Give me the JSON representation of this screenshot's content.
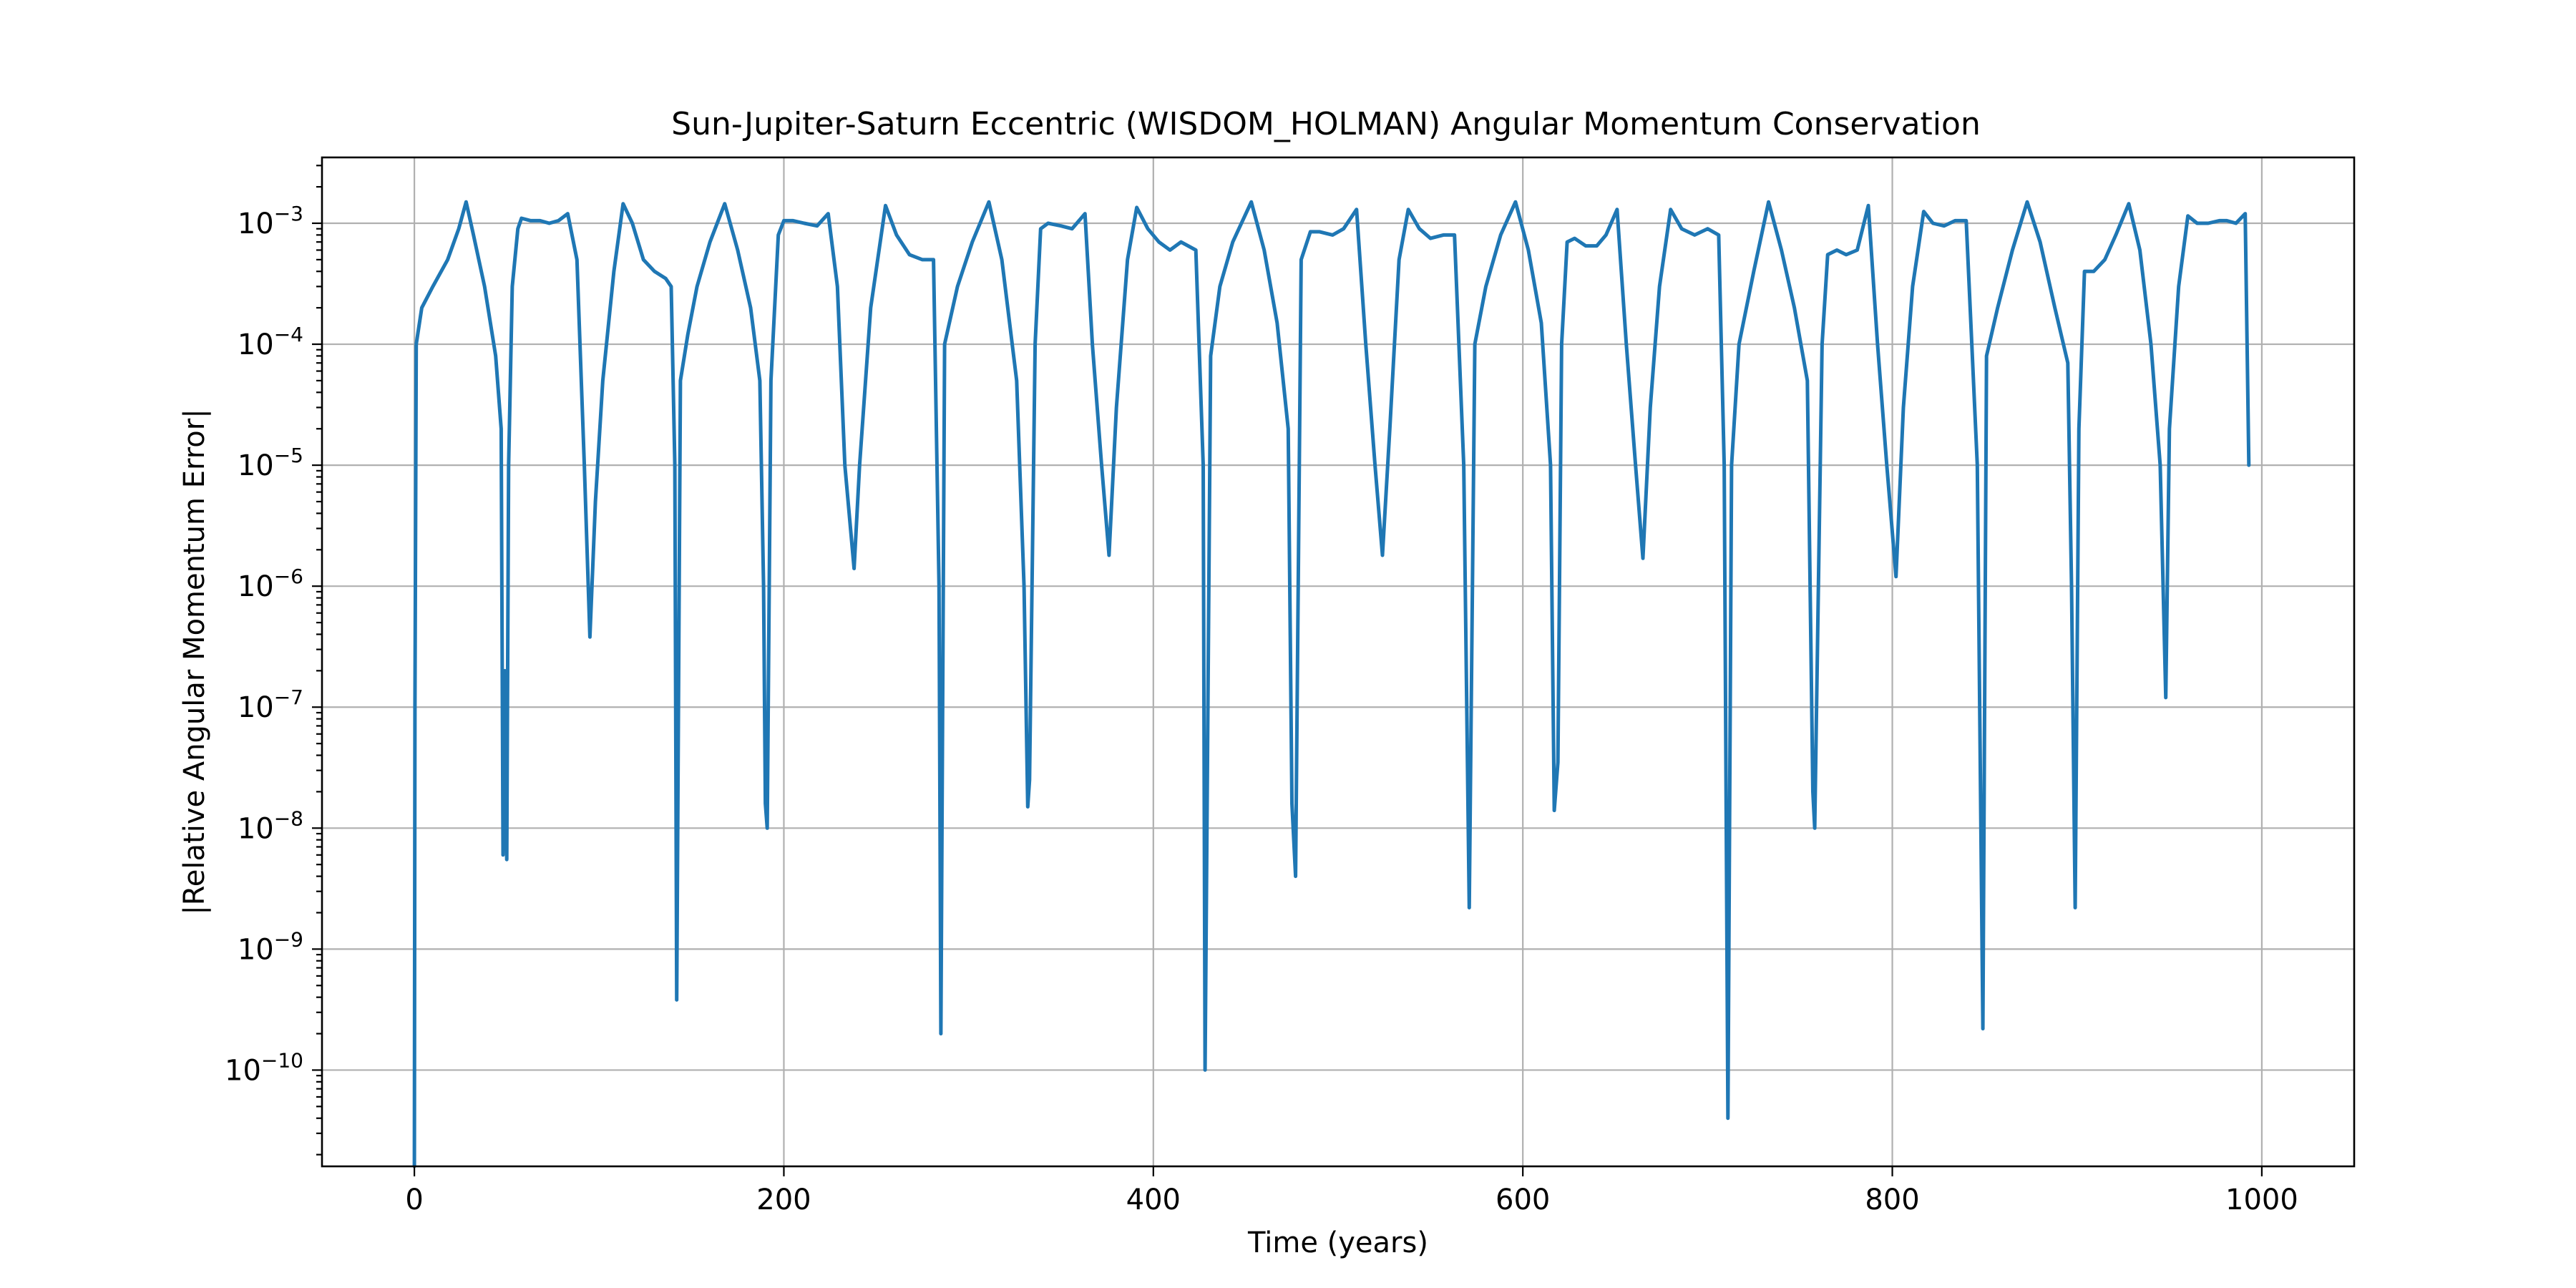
{
  "chart_data": {
    "type": "line",
    "title": "Sun-Jupiter-Saturn Eccentric (WISDOM_HOLMAN) Angular Momentum Conservation",
    "xlabel": "Time (years)",
    "ylabel": "|Relative Angular Momentum Error|",
    "xlim": [
      -50,
      1050
    ],
    "ylim": [
      1.6e-11,
      0.0035
    ],
    "yscale": "log",
    "grid": true,
    "line_color": "#1f77b4",
    "x_ticks": [
      0,
      200,
      400,
      600,
      800,
      1000
    ],
    "x_tick_labels": [
      "0",
      "200",
      "400",
      "600",
      "800",
      "1000"
    ],
    "y_ticks": [
      {
        "exp": -10,
        "base": "10",
        "sup": "−10"
      },
      {
        "exp": -9,
        "base": "10",
        "sup": "−9"
      },
      {
        "exp": -8,
        "base": "10",
        "sup": "−8"
      },
      {
        "exp": -7,
        "base": "10",
        "sup": "−7"
      },
      {
        "exp": -6,
        "base": "10",
        "sup": "−6"
      },
      {
        "exp": -5,
        "base": "10",
        "sup": "−5"
      },
      {
        "exp": -4,
        "base": "10",
        "sup": "−4"
      },
      {
        "exp": -3,
        "base": "10",
        "sup": "−3"
      }
    ],
    "series": [
      {
        "values": [
          [
            0,
            1.6e-11
          ],
          [
            0.3,
            1e-07
          ],
          [
            1,
            0.0001
          ],
          [
            4,
            0.0002
          ],
          [
            10,
            0.0003
          ],
          [
            18,
            0.0005
          ],
          [
            24,
            0.0009
          ],
          [
            28,
            0.0015
          ],
          [
            32,
            0.0008
          ],
          [
            38,
            0.0003
          ],
          [
            44,
            8e-05
          ],
          [
            47,
            2e-05
          ],
          [
            48,
            6e-09
          ],
          [
            49,
            2e-07
          ],
          [
            50,
            5.5e-09
          ],
          [
            51,
            1e-05
          ],
          [
            53,
            0.0003
          ],
          [
            56,
            0.0009
          ],
          [
            58,
            0.0011
          ],
          [
            63,
            0.00105
          ],
          [
            68,
            0.00105
          ],
          [
            73,
            0.001
          ],
          [
            78,
            0.00105
          ],
          [
            83,
            0.0012
          ],
          [
            88,
            0.0005
          ],
          [
            92,
            1e-05
          ],
          [
            95,
            3.8e-07
          ],
          [
            98,
            5e-06
          ],
          [
            102,
            5e-05
          ],
          [
            108,
            0.0004
          ],
          [
            113,
            0.00145
          ],
          [
            118,
            0.001
          ],
          [
            124,
            0.0005
          ],
          [
            130,
            0.0004
          ],
          [
            136,
            0.00035
          ],
          [
            139,
            0.0003
          ],
          [
            141,
            1e-05
          ],
          [
            142,
            3.8e-10
          ],
          [
            144,
            5e-05
          ],
          [
            148,
            0.00012
          ],
          [
            153,
            0.0003
          ],
          [
            160,
            0.0007
          ],
          [
            168,
            0.00145
          ],
          [
            175,
            0.0006
          ],
          [
            182,
            0.0002
          ],
          [
            187,
            5e-05
          ],
          [
            189,
            1e-06
          ],
          [
            190,
            1.6e-08
          ],
          [
            191,
            1e-08
          ],
          [
            193,
            5e-05
          ],
          [
            197,
            0.0008
          ],
          [
            200,
            0.00105
          ],
          [
            205,
            0.00105
          ],
          [
            211,
            0.001
          ],
          [
            218,
            0.00095
          ],
          [
            224,
            0.0012
          ],
          [
            229,
            0.0003
          ],
          [
            233,
            1e-05
          ],
          [
            238,
            1.4e-06
          ],
          [
            241,
            1e-05
          ],
          [
            247,
            0.0002
          ],
          [
            255,
            0.0014
          ],
          [
            261,
            0.0008
          ],
          [
            268,
            0.00055
          ],
          [
            275,
            0.0005
          ],
          [
            281,
            0.0005
          ],
          [
            284,
            1e-06
          ],
          [
            285,
            2e-10
          ],
          [
            287,
            0.0001
          ],
          [
            294,
            0.0003
          ],
          [
            302,
            0.0007
          ],
          [
            311,
            0.0015
          ],
          [
            318,
            0.0005
          ],
          [
            326,
            5e-05
          ],
          [
            330,
            1e-06
          ],
          [
            332,
            1.5e-08
          ],
          [
            333,
            2.5e-08
          ],
          [
            336,
            0.0001
          ],
          [
            339,
            0.0009
          ],
          [
            343,
            0.001
          ],
          [
            350,
            0.00095
          ],
          [
            356,
            0.0009
          ],
          [
            363,
            0.0012
          ],
          [
            367,
            0.0001
          ],
          [
            372,
            1e-05
          ],
          [
            376,
            1.8e-06
          ],
          [
            380,
            3e-05
          ],
          [
            386,
            0.0005
          ],
          [
            391,
            0.00135
          ],
          [
            397,
            0.0009
          ],
          [
            403,
            0.0007
          ],
          [
            409,
            0.0006
          ],
          [
            415,
            0.0007
          ],
          [
            423,
            0.0006
          ],
          [
            427,
            1e-05
          ],
          [
            428,
            1e-10
          ],
          [
            431,
            8e-05
          ],
          [
            436,
            0.0003
          ],
          [
            443,
            0.0007
          ],
          [
            453,
            0.0015
          ],
          [
            460,
            0.0006
          ],
          [
            467,
            0.00015
          ],
          [
            473,
            2e-05
          ],
          [
            475,
            1.6e-08
          ],
          [
            477,
            4e-09
          ],
          [
            480,
            0.0005
          ],
          [
            485,
            0.00085
          ],
          [
            490,
            0.00085
          ],
          [
            497,
            0.0008
          ],
          [
            503,
            0.0009
          ],
          [
            510,
            0.0013
          ],
          [
            515,
            0.0001
          ],
          [
            520,
            1e-05
          ],
          [
            524,
            1.8e-06
          ],
          [
            528,
            2e-05
          ],
          [
            533,
            0.0005
          ],
          [
            538,
            0.0013
          ],
          [
            544,
            0.0009
          ],
          [
            550,
            0.00075
          ],
          [
            557,
            0.0008
          ],
          [
            563,
            0.0008
          ],
          [
            568,
            1e-05
          ],
          [
            571,
            2.2e-09
          ],
          [
            574,
            0.0001
          ],
          [
            580,
            0.0003
          ],
          [
            588,
            0.0008
          ],
          [
            596,
            0.0015
          ],
          [
            603,
            0.0006
          ],
          [
            610,
            0.00015
          ],
          [
            615,
            1e-05
          ],
          [
            617,
            1.4e-08
          ],
          [
            619,
            3.5e-08
          ],
          [
            621,
            0.0001
          ],
          [
            624,
            0.0007
          ],
          [
            628,
            0.00075
          ],
          [
            634,
            0.00065
          ],
          [
            640,
            0.00065
          ],
          [
            645,
            0.0008
          ],
          [
            651,
            0.0013
          ],
          [
            656,
            0.0001
          ],
          [
            661,
            1e-05
          ],
          [
            665,
            1.7e-06
          ],
          [
            669,
            3e-05
          ],
          [
            674,
            0.0003
          ],
          [
            680,
            0.0013
          ],
          [
            686,
            0.0009
          ],
          [
            693,
            0.0008
          ],
          [
            700,
            0.0009
          ],
          [
            706,
            0.0008
          ],
          [
            709,
            1e-05
          ],
          [
            711,
            4e-11
          ],
          [
            713,
            1e-05
          ],
          [
            717,
            0.0001
          ],
          [
            725,
            0.0004
          ],
          [
            733,
            0.0015
          ],
          [
            740,
            0.0006
          ],
          [
            747,
            0.0002
          ],
          [
            754,
            5e-05
          ],
          [
            757,
            2e-08
          ],
          [
            758,
            1e-08
          ],
          [
            762,
            0.0001
          ],
          [
            765,
            0.00055
          ],
          [
            770,
            0.0006
          ],
          [
            775,
            0.00055
          ],
          [
            781,
            0.0006
          ],
          [
            787,
            0.0014
          ],
          [
            792,
            0.0001
          ],
          [
            797,
            1e-05
          ],
          [
            802,
            1.2e-06
          ],
          [
            806,
            3e-05
          ],
          [
            811,
            0.0003
          ],
          [
            817,
            0.00125
          ],
          [
            822,
            0.001
          ],
          [
            828,
            0.00095
          ],
          [
            834,
            0.00105
          ],
          [
            840,
            0.00105
          ],
          [
            846,
            1e-05
          ],
          [
            849,
            2.2e-10
          ],
          [
            851,
            8e-05
          ],
          [
            857,
            0.0002
          ],
          [
            865,
            0.0006
          ],
          [
            873,
            0.0015
          ],
          [
            880,
            0.0007
          ],
          [
            888,
            0.0002
          ],
          [
            895,
            7e-05
          ],
          [
            897,
            1e-06
          ],
          [
            899,
            2.2e-09
          ],
          [
            901,
            2e-05
          ],
          [
            904,
            0.0004
          ],
          [
            909,
            0.0004
          ],
          [
            915,
            0.0005
          ],
          [
            921,
            0.0008
          ],
          [
            928,
            0.00145
          ],
          [
            934,
            0.0006
          ],
          [
            940,
            0.0001
          ],
          [
            945,
            1e-05
          ],
          [
            948,
            1.2e-07
          ],
          [
            950,
            2e-05
          ],
          [
            955,
            0.0003
          ],
          [
            960,
            0.00115
          ],
          [
            965,
            0.001
          ],
          [
            971,
            0.001
          ],
          [
            977,
            0.00105
          ],
          [
            981,
            0.00105
          ],
          [
            986,
            0.001
          ],
          [
            991,
            0.0012
          ],
          [
            993,
            1e-05
          ]
        ]
      }
    ]
  }
}
